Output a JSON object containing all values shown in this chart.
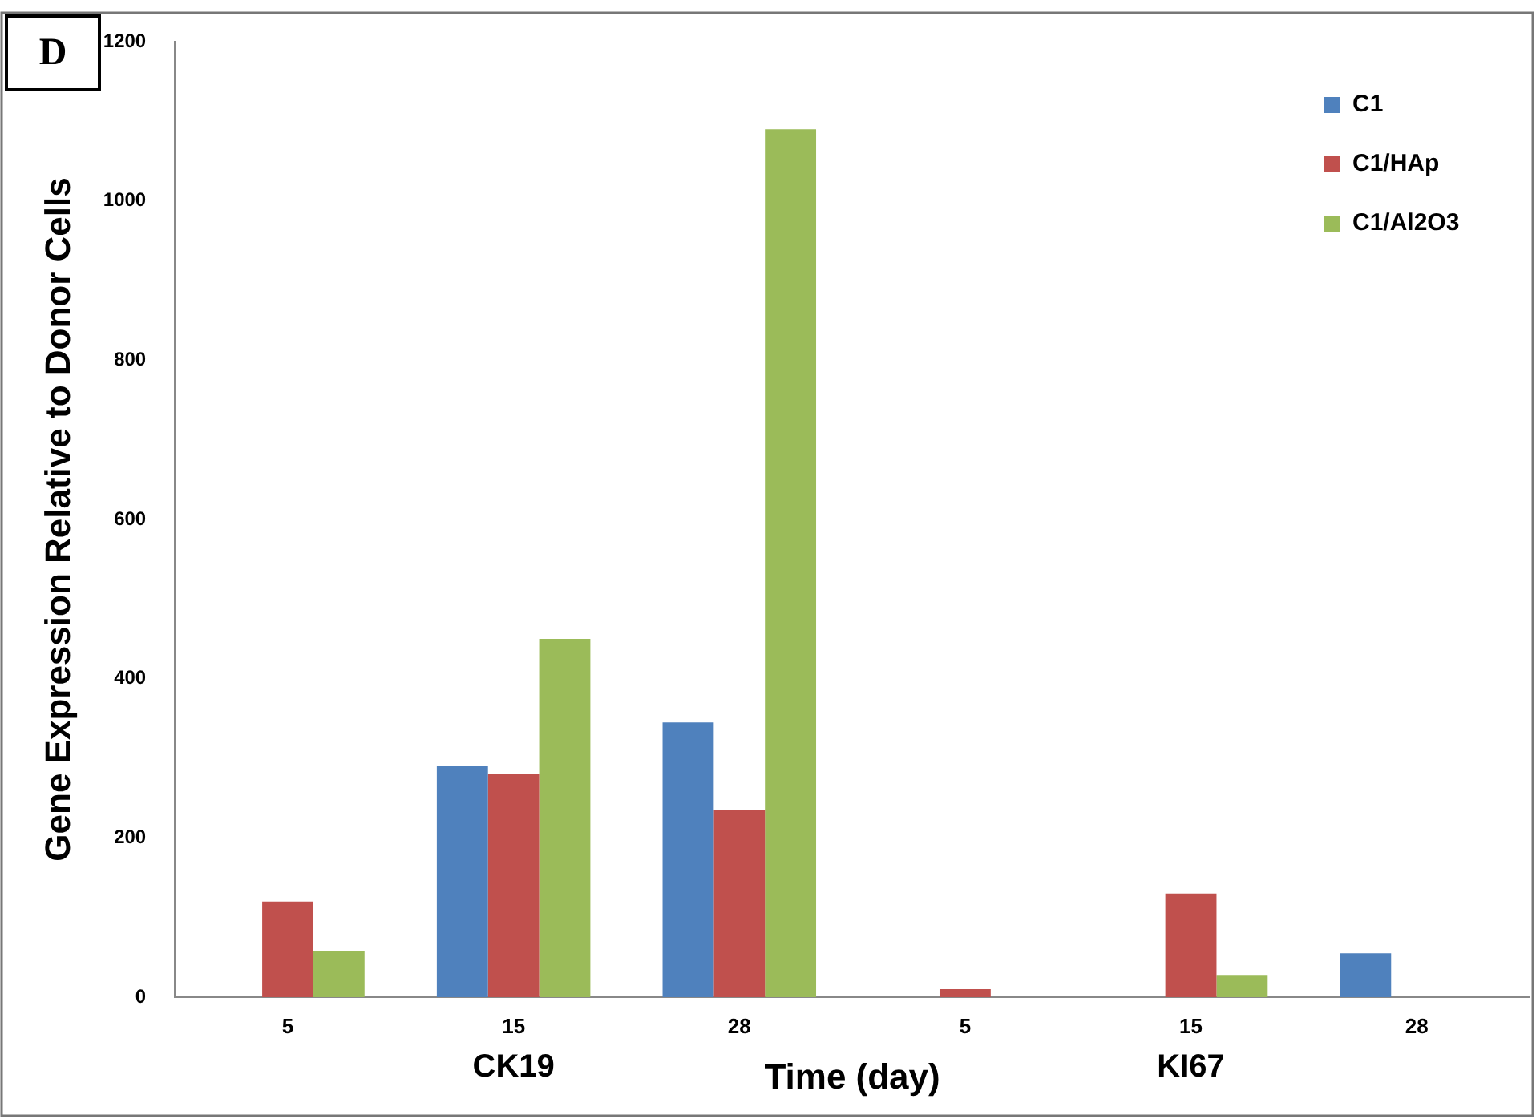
{
  "chart_data": {
    "type": "bar",
    "xlabel": "Time (day)",
    "ylabel": "Gene Expression Relative to Donor Cells",
    "categories": [
      "5",
      "15",
      "28",
      "5",
      "15",
      "28"
    ],
    "series": [
      {
        "name": "C1",
        "color": "#4f81bd",
        "values": [
          0,
          290,
          345,
          0,
          0,
          55
        ]
      },
      {
        "name": "C1/HAp",
        "color": "#c0504d",
        "values": [
          120,
          280,
          235,
          10,
          130,
          0
        ]
      },
      {
        "name": "C1/Al2O3",
        "color": "#9bbb59",
        "values": [
          58,
          450,
          1090,
          0,
          28,
          0
        ]
      }
    ],
    "ylim": [
      0,
      1200
    ],
    "yticks": [
      0,
      200,
      400,
      600,
      800,
      1000,
      1200
    ],
    "grid": false,
    "legend": "top right",
    "annotations": [
      "D",
      "CK19",
      "KI67"
    ]
  }
}
